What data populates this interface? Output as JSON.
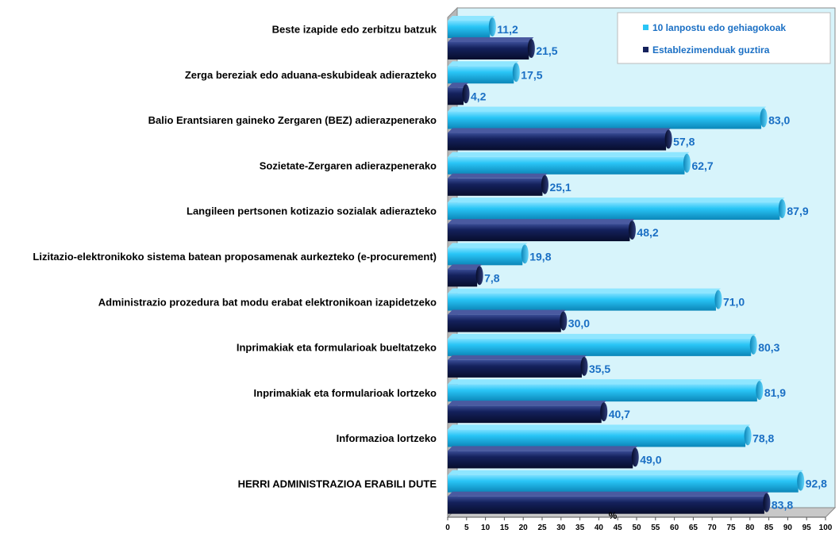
{
  "chart_data": {
    "type": "bar",
    "orientation": "horizontal",
    "categories": [
      "Beste izapide edo zerbitzu batzuk",
      "Zerga bereziak edo aduana-eskubideak adierazteko",
      "Balio Erantsiaren gaineko Zergaren (BEZ) adierazpenerako",
      "Sozietate-Zergaren adierazpenerako",
      "Langileen pertsonen kotizazio sozialak adierazteko",
      "Lizitazio-elektronikoko sistema batean proposamenak aurkezteko (e-procurement)",
      "Administrazio prozedura bat modu erabat elektronikoan izapidetzeko",
      "Inprimakiak eta formularioak bueltatzeko",
      "Inprimakiak eta formularioak lortzeko",
      "Informazioa lortzeko",
      "HERRI ADMINISTRAZIOA ERABILI DUTE"
    ],
    "series": [
      {
        "name": "10 lanpostu edo gehiagokoak",
        "color": "#29c5f6",
        "values": [
          11.2,
          17.5,
          83.0,
          62.7,
          87.9,
          19.8,
          71.0,
          80.3,
          81.9,
          78.8,
          92.8
        ],
        "labels": [
          "11,2",
          "17,5",
          "83,0",
          "62,7",
          "87,9",
          "19,8",
          "71,0",
          "80,3",
          "81,9",
          "78,8",
          "92,8"
        ]
      },
      {
        "name": "Establezimenduak guztira",
        "color": "#14215c",
        "values": [
          21.5,
          4.2,
          57.8,
          25.1,
          48.2,
          7.8,
          30.0,
          35.5,
          40.7,
          49.0,
          83.8
        ],
        "labels": [
          "21,5",
          "4,2",
          "57,8",
          "25,1",
          "48,2",
          "7,8",
          "30,0",
          "35,5",
          "40,7",
          "49,0",
          "83,8"
        ]
      }
    ],
    "xlim": [
      0,
      100
    ],
    "xticks": [
      "0",
      "5",
      "10",
      "15",
      "20",
      "25",
      "30",
      "35",
      "40",
      "45",
      "50",
      "55",
      "60",
      "65",
      "70",
      "75",
      "80",
      "85",
      "90",
      "95",
      "100"
    ],
    "xlabel": "%",
    "legend_position": "top-right",
    "grid": false,
    "plot_background": "#d7f4fb"
  }
}
